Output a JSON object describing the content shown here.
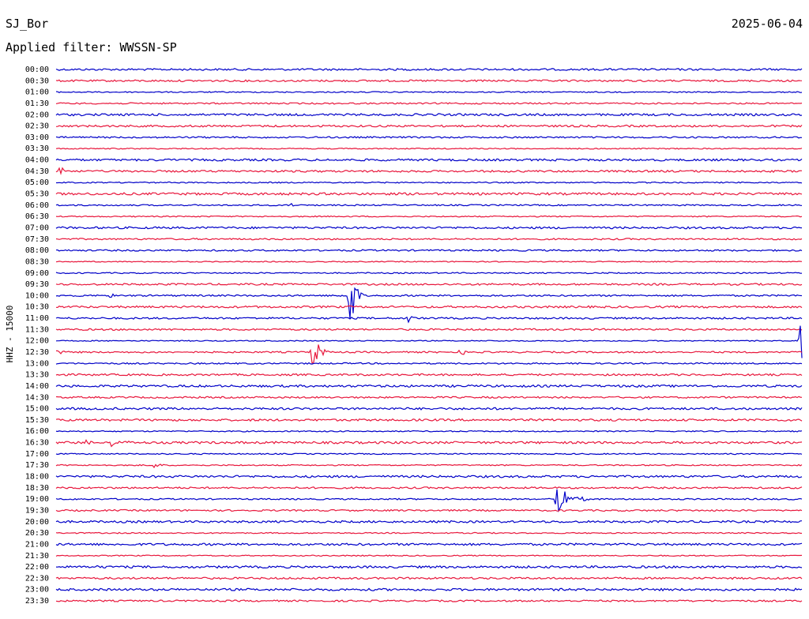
{
  "header": {
    "station": "SJ_Bor",
    "date": "2025-06-04",
    "filter": "Applied filter: WWSSN-SP"
  },
  "axis_label": "HHZ - 15000",
  "rows": [
    "00:00",
    "00:30",
    "01:00",
    "01:30",
    "02:00",
    "02:30",
    "03:00",
    "03:30",
    "04:00",
    "04:30",
    "05:00",
    "05:30",
    "06:00",
    "06:30",
    "07:00",
    "07:30",
    "08:00",
    "08:30",
    "09:00",
    "09:30",
    "10:00",
    "10:30",
    "11:00",
    "11:30",
    "12:00",
    "12:30",
    "13:00",
    "13:30",
    "14:00",
    "14:30",
    "15:00",
    "15:30",
    "16:00",
    "16:30",
    "17:00",
    "17:30",
    "18:00",
    "18:30",
    "19:00",
    "19:30",
    "20:00",
    "20:30",
    "21:00",
    "21:30",
    "22:00",
    "22:30",
    "23:00",
    "23:30"
  ]
}
